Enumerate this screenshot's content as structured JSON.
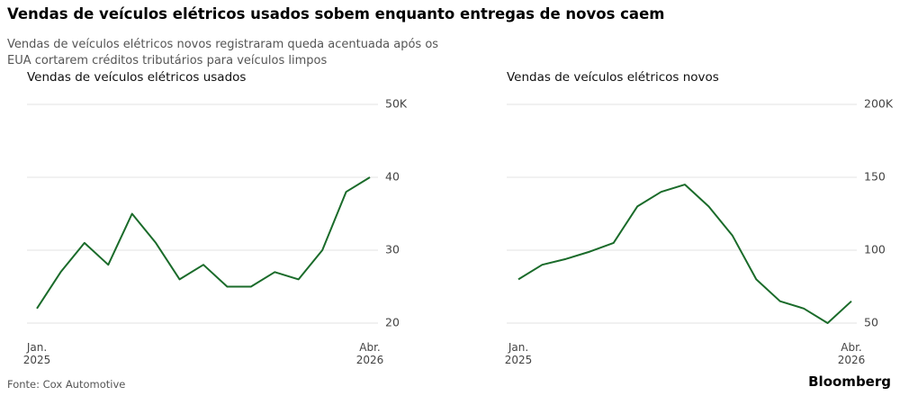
{
  "title": "Vendas de veículos elétricos usados sobem enquanto entregas de novos caem",
  "subtitle": "Vendas de veículos elétricos novos registraram queda acentuada após os EUA cortarem créditos tributários para veículos limpos",
  "source": "Fonte: Cox Automotive",
  "brand": "Bloomberg",
  "chart_data": [
    {
      "type": "line",
      "title": "Vendas de veículos elétricos usados",
      "categories": [
        "Jan.\n2025",
        null,
        null,
        null,
        null,
        null,
        null,
        null,
        null,
        null,
        null,
        null,
        null,
        null,
        "Abr.\n2026"
      ],
      "values": [
        22,
        27,
        31,
        28,
        35,
        31,
        26,
        28,
        25,
        25,
        27,
        26,
        30,
        38,
        40
      ],
      "color": "#1a6b2a",
      "ylim": [
        20,
        50
      ],
      "yticks": [
        20,
        30,
        40,
        {
          "value": 50,
          "label": "50K"
        }
      ],
      "grid": true
    },
    {
      "type": "line",
      "title": "Vendas de veículos elétricos novos",
      "categories": [
        "Jan.\n2025",
        null,
        null,
        null,
        null,
        null,
        null,
        null,
        null,
        null,
        null,
        null,
        null,
        null,
        "Abr.\n2026"
      ],
      "values": [
        80,
        90,
        94,
        99,
        105,
        130,
        140,
        145,
        130,
        110,
        80,
        65,
        60,
        50,
        65
      ],
      "color": "#1a6b2a",
      "ylim": [
        50,
        200
      ],
      "yticks": [
        50,
        100,
        150,
        {
          "value": 200,
          "label": "200K"
        }
      ],
      "grid": true
    }
  ]
}
